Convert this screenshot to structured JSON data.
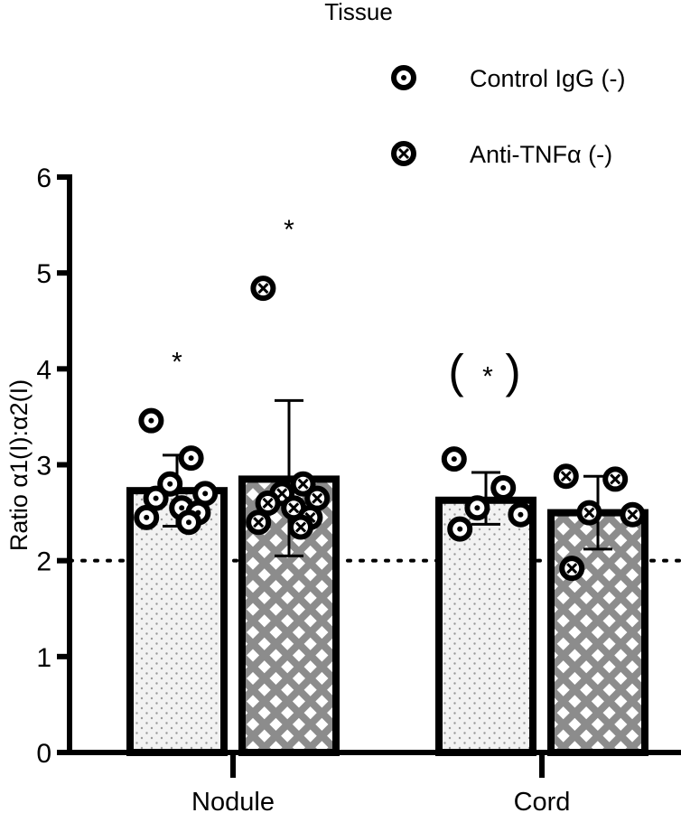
{
  "legend": {
    "title": "Tissue",
    "items": [
      {
        "label": "Control IgG (-)",
        "marker": "circle-dot-marker"
      },
      {
        "label": "Anti-TNFα (-)",
        "marker": "circle-x-marker"
      }
    ]
  },
  "chart_data": {
    "type": "bar",
    "title": "",
    "ylabel": "Ratio α1(I):α2(I)",
    "xlabel": "",
    "ylim": [
      0,
      6
    ],
    "yticks": [
      "0",
      "1",
      "2",
      "3",
      "4",
      "5",
      "6"
    ],
    "reference_line": 2,
    "grid": false,
    "legend_position": "top-right",
    "categories": [
      "Nodule",
      "Cord"
    ],
    "series": [
      {
        "name": "Control IgG (-)",
        "pattern": "dots",
        "fill": "#f2f2f2",
        "values": [
          2.73,
          2.63
        ],
        "error": [
          [
            2.36,
            3.1
          ],
          [
            2.38,
            2.92
          ]
        ],
        "points": [
          [
            3.46,
            3.07,
            2.8,
            2.7,
            2.65,
            2.55,
            2.5,
            2.45,
            2.4
          ],
          [
            3.06,
            2.76,
            2.55,
            2.48,
            2.33
          ]
        ],
        "annotations": [
          "*",
          "(*)"
        ]
      },
      {
        "name": "Anti-TNFα (-)",
        "pattern": "crosshatch",
        "fill": "#8c8c8c",
        "values": [
          2.85,
          2.5
        ],
        "error": [
          [
            2.05,
            3.67
          ],
          [
            2.12,
            2.88
          ]
        ],
        "points": [
          [
            4.84,
            2.8,
            2.7,
            2.65,
            2.6,
            2.55,
            2.45,
            2.4,
            2.35
          ],
          [
            2.88,
            2.85,
            2.5,
            2.48,
            1.92
          ]
        ],
        "annotations": [
          "*",
          ""
        ]
      }
    ]
  }
}
